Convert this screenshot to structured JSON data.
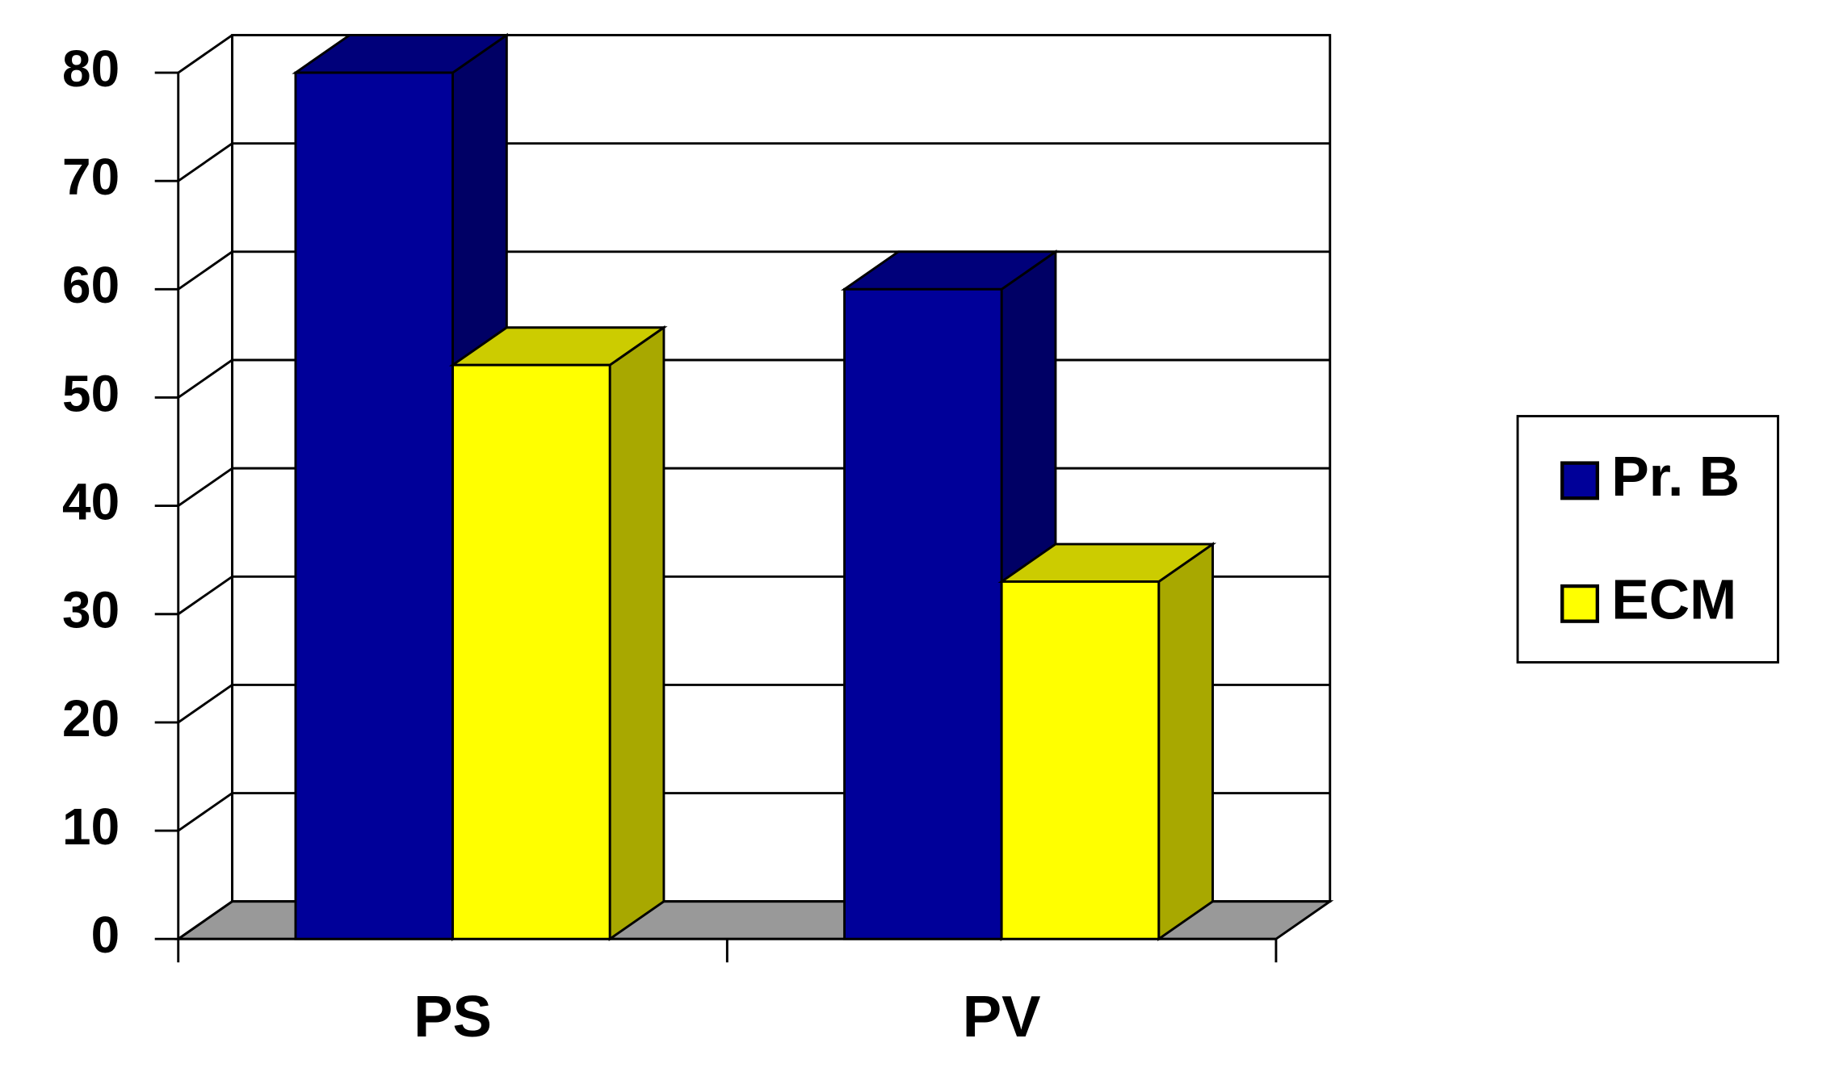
{
  "chart_data": {
    "type": "bar3d",
    "categories": [
      "PS",
      "PV"
    ],
    "series": [
      {
        "name": "Pr. B",
        "color": "#000099",
        "values": [
          80,
          60
        ]
      },
      {
        "name": "ECM",
        "color": "#ffff00",
        "values": [
          53,
          33
        ]
      }
    ],
    "ylim": [
      0,
      80
    ],
    "yticks": [
      0,
      10,
      20,
      30,
      40,
      50,
      60,
      70,
      80
    ],
    "grid": true,
    "legend": "right"
  }
}
